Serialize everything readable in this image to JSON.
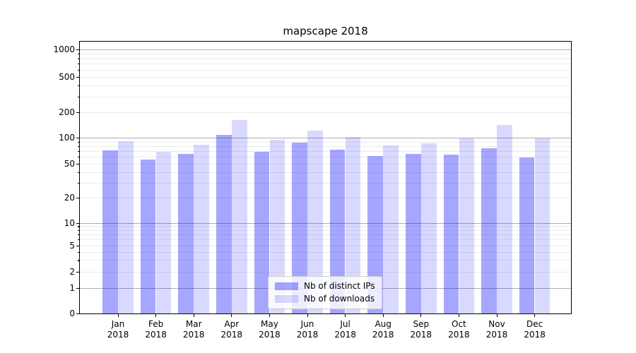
{
  "chart_data": {
    "type": "bar",
    "title": "mapscape 2018",
    "categories": [
      "Jan",
      "Feb",
      "Mar",
      "Apr",
      "May",
      "Jun",
      "Jul",
      "Aug",
      "Sep",
      "Oct",
      "Nov",
      "Dec"
    ],
    "x_year": "2018",
    "series": [
      {
        "name": "Nb of distinct IPs",
        "color": "rgba(0,0,255,0.35)",
        "values": [
          72,
          57,
          66,
          110,
          70,
          89,
          74,
          62,
          65,
          64,
          76,
          60
        ]
      },
      {
        "name": "Nb of downloads",
        "color": "rgba(0,0,255,0.15)",
        "values": [
          92,
          70,
          83,
          163,
          95,
          123,
          103,
          82,
          87,
          99,
          143,
          100
        ]
      }
    ],
    "yscale": "symlog",
    "ylim": [
      0,
      1250
    ],
    "yticks": [
      0,
      1,
      2,
      5,
      10,
      20,
      50,
      100,
      200,
      500,
      1000
    ],
    "grid": "horizontal major and minor gridlines",
    "legend_position": "lower center"
  },
  "colors": {
    "bar_dark": "rgba(0,0,255,0.35)",
    "bar_light": "rgba(0,0,255,0.15)",
    "grid_major": "#adadad",
    "grid_minor": "#ebebeb",
    "spine": "#000000",
    "background": "#ffffff"
  }
}
